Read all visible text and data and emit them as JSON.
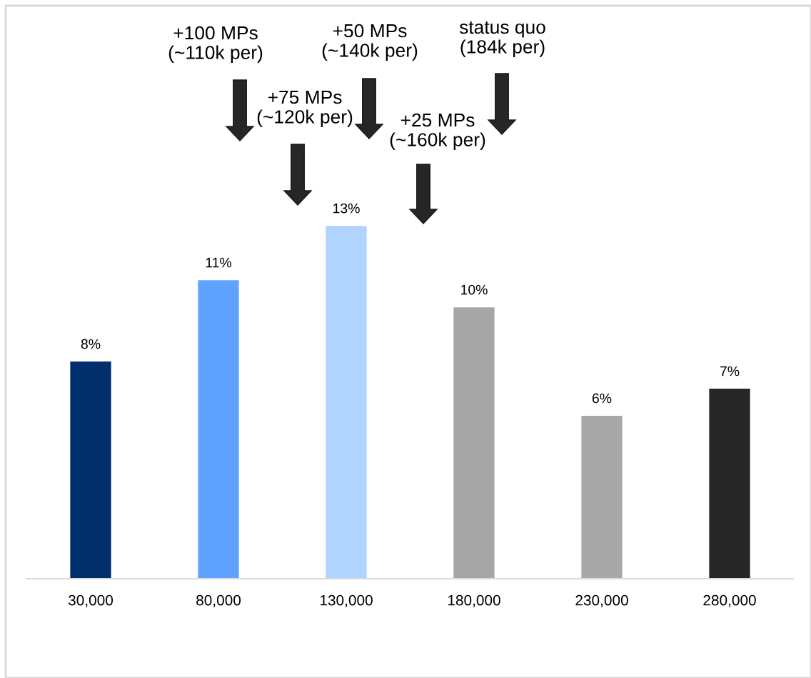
{
  "chart_data": {
    "type": "bar",
    "categories": [
      "30,000",
      "80,000",
      "130,000",
      "180,000",
      "230,000",
      "280,000"
    ],
    "values": [
      8,
      11,
      13,
      10,
      6,
      7
    ],
    "colors": [
      "#002f6c",
      "#5da3ff",
      "#b0d3ff",
      "#a6a6a6",
      "#a8a8a8",
      "#262626"
    ],
    "value_labels": [
      "8%",
      "11%",
      "13%",
      "10%",
      "6%",
      "7%"
    ],
    "annotations": [
      "+100 MPs\n(~110k per)",
      "+75 MPs\n(~120k per)",
      "+50 MPs\n(~140k per)",
      "+25 MPs\n(~160k per)",
      "status quo\n(184k per)"
    ]
  }
}
